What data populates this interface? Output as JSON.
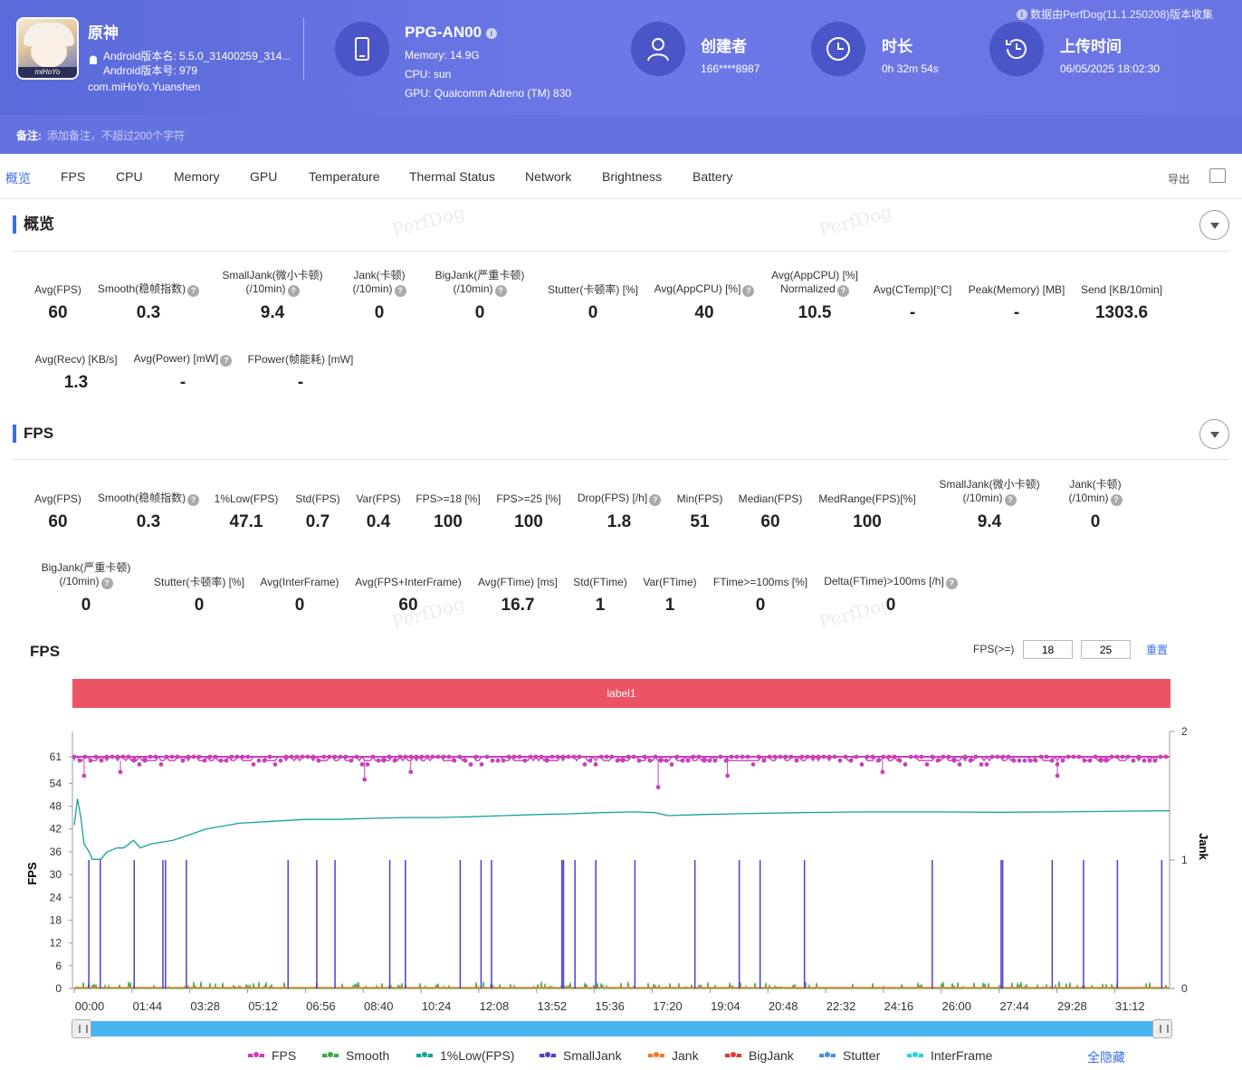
{
  "header": {
    "collect_note": "数据由PerfDog(11.1.250208)版本收集",
    "app_name": "原神",
    "android_version_name": "Android版本名: 5.5.0_31400259_314...",
    "android_version_code": "Android版本号: 979",
    "package": "com.miHoYo.Yuanshen",
    "icon_logo_text": "miHoYo",
    "device": {
      "name": "PPG-AN00",
      "memory": "Memory: 14.9G",
      "cpu": "CPU: sun",
      "gpu": "GPU: Qualcomm Adreno (TM) 830"
    },
    "creator": {
      "title": "创建者",
      "value": "166****8987"
    },
    "duration": {
      "title": "时长",
      "value": "0h 32m 54s"
    },
    "upload": {
      "title": "上传时间",
      "value": "06/05/2025 18:02:30"
    },
    "remark_label": "备注:",
    "remark_placeholder": "添加备注，不超过200个字符"
  },
  "tabs": [
    "概览",
    "FPS",
    "CPU",
    "Memory",
    "GPU",
    "Temperature",
    "Thermal Status",
    "Network",
    "Brightness",
    "Battery"
  ],
  "export_label": "导出",
  "overview": {
    "title": "概览",
    "metrics": [
      {
        "label": "Avg(FPS)",
        "value": "60"
      },
      {
        "label": "Smooth(稳帧指数)",
        "value": "0.3"
      },
      {
        "label": "SmallJank(微小卡顿) (/10min)",
        "value": "9.4"
      },
      {
        "label": "Jank(卡顿) (/10min)",
        "value": "0"
      },
      {
        "label": "BigJank(严重卡顿) (/10min)",
        "value": "0"
      },
      {
        "label": "Stutter(卡顿率) [%]",
        "value": "0"
      },
      {
        "label": "Avg(AppCPU) [%]",
        "value": "40"
      },
      {
        "label": "Avg(AppCPU) [%] Normalized",
        "value": "10.5"
      },
      {
        "label": "Avg(CTemp)[°C]",
        "value": "-"
      },
      {
        "label": "Peak(Memory) [MB]",
        "value": "-"
      },
      {
        "label": "Send [KB/10min]",
        "value": "1303.6"
      },
      {
        "label": "Avg(Recv) [KB/s]",
        "value": "1.3"
      },
      {
        "label": "Avg(Power) [mW]",
        "value": "-"
      },
      {
        "label": "FPower(帧能耗) [mW]",
        "value": "-"
      }
    ]
  },
  "fps_section": {
    "title": "FPS",
    "metrics": [
      {
        "label": "Avg(FPS)",
        "value": "60"
      },
      {
        "label": "Smooth(稳帧指数)",
        "value": "0.3"
      },
      {
        "label": "1%Low(FPS)",
        "value": "47.1"
      },
      {
        "label": "Std(FPS)",
        "value": "0.7"
      },
      {
        "label": "Var(FPS)",
        "value": "0.4"
      },
      {
        "label": "FPS>=18 [%]",
        "value": "100"
      },
      {
        "label": "FPS>=25 [%]",
        "value": "100"
      },
      {
        "label": "Drop(FPS) [/h]",
        "value": "1.8"
      },
      {
        "label": "Min(FPS)",
        "value": "51"
      },
      {
        "label": "Median(FPS)",
        "value": "60"
      },
      {
        "label": "MedRange(FPS)[%]",
        "value": "100"
      },
      {
        "label": "SmallJank(微小卡顿) (/10min)",
        "value": "9.4"
      },
      {
        "label": "Jank(卡顿) (/10min)",
        "value": "0"
      },
      {
        "label": "BigJank(严重卡顿) (/10min)",
        "value": "0"
      },
      {
        "label": "Stutter(卡顿率) [%]",
        "value": "0"
      },
      {
        "label": "Avg(InterFrame)",
        "value": "0"
      },
      {
        "label": "Avg(FPS+InterFrame)",
        "value": "60"
      },
      {
        "label": "Avg(FTime) [ms]",
        "value": "16.7"
      },
      {
        "label": "Std(FTime)",
        "value": "1"
      },
      {
        "label": "Var(FTime)",
        "value": "1"
      },
      {
        "label": "FTime>=100ms [%]",
        "value": "0"
      },
      {
        "label": "Delta(FTime)>100ms [/h]",
        "value": "0"
      }
    ]
  },
  "chart_controls": {
    "title": "FPS",
    "threshold_label": "FPS(>=)",
    "threshold_1": "18",
    "threshold_2": "25",
    "reset_label": "重置",
    "label_bar": "label1",
    "hide_all": "全隐藏"
  },
  "watermark_text": "PerfDog",
  "colors": {
    "fps": "#c940b8",
    "smooth": "#3aaa4a",
    "low1": "#16a39a",
    "smalljank": "#4b3fd6",
    "jank": "#f07a2a",
    "bigjank": "#e2373b",
    "stutter": "#4a8fe8",
    "interframe": "#2ecfd8"
  },
  "chart_data": {
    "type": "line",
    "ylabel": "FPS",
    "y2label": "Jank",
    "y_ticks": [
      0,
      6,
      12,
      18,
      24,
      30,
      36,
      42,
      48,
      54,
      61
    ],
    "y2_ticks": [
      0,
      1,
      2
    ],
    "x_ticks": [
      "00:00",
      "01:44",
      "03:28",
      "05:12",
      "06:56",
      "08:40",
      "10:24",
      "12:08",
      "13:52",
      "15:36",
      "17:20",
      "19:04",
      "20:48",
      "22:32",
      "24:16",
      "26:00",
      "27:44",
      "29:28",
      "31:12"
    ],
    "x_range_seconds": [
      0,
      1974
    ],
    "series": [
      {
        "name": "FPS",
        "description": "around 60, dips",
        "dips": [
          [
            30,
            56
          ],
          [
            140,
            57
          ],
          [
            880,
            55
          ],
          [
            1020,
            57
          ],
          [
            1770,
            53
          ],
          [
            1980,
            56
          ],
          [
            2450,
            57
          ],
          [
            2980,
            56
          ]
        ]
      },
      {
        "name": "1%Low(FPS)",
        "points": [
          [
            0,
            43
          ],
          [
            10,
            50
          ],
          [
            20,
            45
          ],
          [
            30,
            38
          ],
          [
            45,
            36
          ],
          [
            55,
            34
          ],
          [
            80,
            34
          ],
          [
            100,
            36
          ],
          [
            130,
            37
          ],
          [
            150,
            37
          ],
          [
            180,
            39
          ],
          [
            200,
            37
          ],
          [
            230,
            38
          ],
          [
            300,
            39
          ],
          [
            400,
            42
          ],
          [
            500,
            43.5
          ],
          [
            600,
            44
          ],
          [
            700,
            44.5
          ],
          [
            800,
            44.5
          ],
          [
            900,
            44.8
          ],
          [
            1000,
            45
          ],
          [
            1100,
            45
          ],
          [
            1200,
            45.2
          ],
          [
            1300,
            45.5
          ],
          [
            1400,
            45.8
          ],
          [
            1500,
            46
          ],
          [
            1600,
            46.3
          ],
          [
            1700,
            46.5
          ],
          [
            1760,
            46.3
          ],
          [
            1800,
            45.5
          ],
          [
            1900,
            45.8
          ],
          [
            2000,
            46
          ],
          [
            2200,
            46.3
          ],
          [
            2400,
            46.5
          ],
          [
            2600,
            46.5
          ],
          [
            2800,
            46.4
          ],
          [
            3000,
            46.5
          ],
          [
            3200,
            46.7
          ],
          [
            3320,
            46.8
          ]
        ]
      },
      {
        "name": "SmallJank",
        "spikes_x": [
          28,
          50,
          115,
          170,
          175,
          215,
          410,
          465,
          500,
          605,
          635,
          740,
          780,
          800,
          935,
          938,
          960,
          1000,
          1075,
          1190,
          1275,
          1315,
          1400,
          1645,
          1777,
          1780,
          1875,
          1935,
          2000,
          2085
        ]
      },
      {
        "name": "Smooth",
        "description": "small noisy values near 0"
      },
      {
        "name": "Jank",
        "values": "0"
      },
      {
        "name": "BigJank",
        "values": "0"
      },
      {
        "name": "Stutter",
        "values": "0"
      },
      {
        "name": "InterFrame",
        "values": "0"
      }
    ],
    "legend": [
      "FPS",
      "Smooth",
      "1%Low(FPS)",
      "SmallJank",
      "Jank",
      "BigJank",
      "Stutter",
      "InterFrame"
    ],
    "legend_position": "bottom"
  }
}
